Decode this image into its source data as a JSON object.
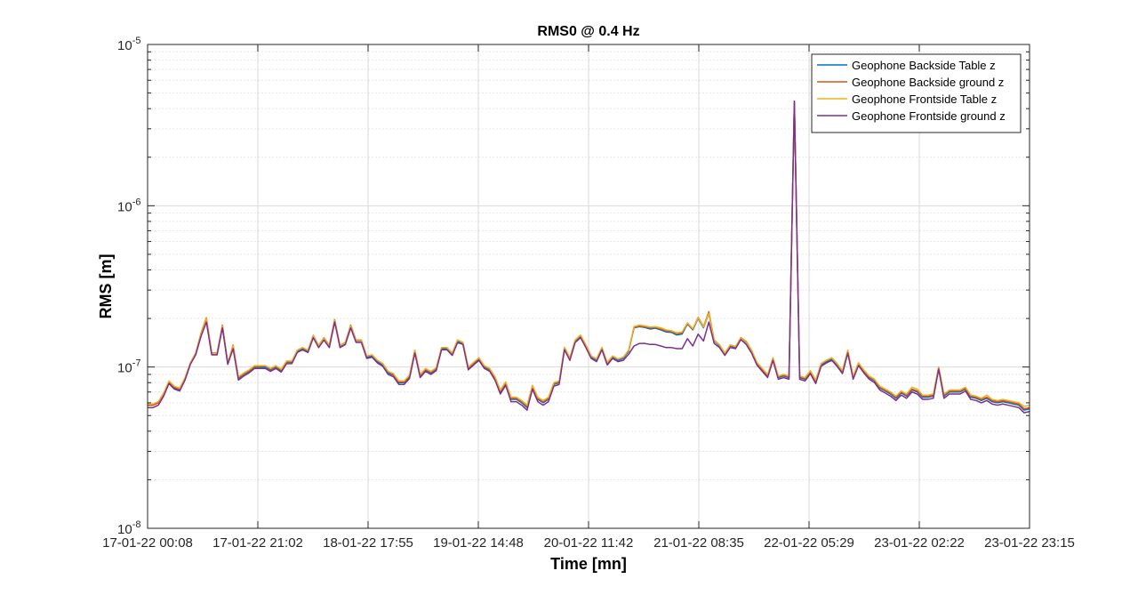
{
  "chart_data": {
    "type": "line",
    "title": "RMS0 @ 0.4 Hz",
    "xlabel": "Time [mn]",
    "ylabel": "RMS [m]",
    "yscale": "log",
    "ylim": [
      1e-08,
      1e-05
    ],
    "ytick_labels": [
      {
        "value": 1e-08,
        "base": "10",
        "exp": "-8"
      },
      {
        "value": 1e-07,
        "base": "10",
        "exp": "-7"
      },
      {
        "value": 1e-06,
        "base": "10",
        "exp": "-6"
      },
      {
        "value": 1e-05,
        "base": "10",
        "exp": "-5"
      }
    ],
    "xticks": [
      "17-01-22 00:08",
      "17-01-22 21:02",
      "18-01-22 17:55",
      "19-01-22 14:48",
      "20-01-22 11:42",
      "21-01-22 08:35",
      "22-01-22 05:29",
      "23-01-22 02:22",
      "23-01-22 23:15"
    ],
    "grid": true,
    "minor_grid": true,
    "legend_position": "top-right",
    "colors": [
      "#0072BD",
      "#D95319",
      "#EDB120",
      "#7E2F8E"
    ],
    "series": [
      {
        "name": "Geophone Backside Table z",
        "color": "#0072BD",
        "values": [
          5.8e-08,
          5.8e-08,
          6e-08,
          6.8e-08,
          8e-08,
          7.4e-08,
          7.2e-08,
          8.4e-08,
          1.05e-07,
          1.2e-07,
          1.6e-07,
          2e-07,
          1.2e-07,
          1.2e-07,
          1.8e-07,
          1.05e-07,
          1.35e-07,
          8.5e-08,
          9e-08,
          9.4e-08,
          1e-07,
          1e-07,
          1e-07,
          9.6e-08,
          1e-07,
          9.5e-08,
          1.07e-07,
          1.07e-07,
          1.25e-07,
          1.3e-07,
          1.25e-07,
          1.55e-07,
          1.35e-07,
          1.5e-07,
          1.35e-07,
          1.95e-07,
          1.35e-07,
          1.4e-07,
          1.8e-07,
          1.45e-07,
          1.45e-07,
          1.15e-07,
          1.17e-07,
          1.08e-07,
          1.03e-07,
          9.2e-08,
          8.9e-08,
          8e-08,
          8e-08,
          8.7e-08,
          1.25e-07,
          8.8e-08,
          9.6e-08,
          9.2e-08,
          9.7e-08,
          1.3e-07,
          1.3e-07,
          1.2e-07,
          1.45e-07,
          1.4e-07,
          9.8e-08,
          1.05e-07,
          1.12e-07,
          1e-07,
          9.6e-08,
          8.5e-08,
          7e-08,
          7.9e-08,
          6.3e-08,
          6.3e-08,
          6e-08,
          5.6e-08,
          7.5e-08,
          6.3e-08,
          6e-08,
          6.3e-08,
          7.8e-08,
          8e-08,
          1.3e-07,
          1.12e-07,
          1.45e-07,
          1.55e-07,
          1.35e-07,
          1.15e-07,
          1.1e-07,
          1.3e-07,
          1.05e-07,
          1.15e-07,
          1.1e-07,
          1.13e-07,
          1.25e-07,
          1.75e-07,
          1.78e-07,
          1.76e-07,
          1.72e-07,
          1.74e-07,
          1.7e-07,
          1.65e-07,
          1.64e-07,
          1.58e-07,
          1.6e-07,
          1.85e-07,
          1.7e-07,
          2e-07,
          1.75e-07,
          2.15e-07,
          1.45e-07,
          1.35e-07,
          1.2e-07,
          1.35e-07,
          1.32e-07,
          1.5e-07,
          1.42e-07,
          1.25e-07,
          1.05e-07,
          9.6e-08,
          8.8e-08,
          1.12e-07,
          8.6e-08,
          8.8e-08,
          8.6e-08,
          4.4e-06,
          8.6e-08,
          8.4e-08,
          9.3e-08,
          8.1e-08,
          1.03e-07,
          1.08e-07,
          1.12e-07,
          1.03e-07,
          9.3e-08,
          1.25e-07,
          8.6e-08,
          1.04e-07,
          9.4e-08,
          8.6e-08,
          8.2e-08,
          7.4e-08,
          7.1e-08,
          6.8e-08,
          6.4e-08,
          6.9e-08,
          6.6e-08,
          7.2e-08,
          7e-08,
          6.5e-08,
          6.5e-08,
          6.6e-08,
          9.9e-08,
          6.6e-08,
          7e-08,
          7e-08,
          7e-08,
          7.3e-08,
          6.5e-08,
          6.4e-08,
          6.2e-08,
          6.4e-08,
          6.1e-08,
          6e-08,
          6.1e-08,
          6e-08,
          5.9e-08,
          5.8e-08,
          5.4e-08,
          5.5e-08
        ]
      },
      {
        "name": "Geophone Backside ground z",
        "color": "#D95319",
        "values": [
          5.8e-08,
          5.8e-08,
          6e-08,
          6.8e-08,
          8.1e-08,
          7.5e-08,
          7.3e-08,
          8.5e-08,
          1.06e-07,
          1.22e-07,
          1.62e-07,
          2.02e-07,
          1.22e-07,
          1.22e-07,
          1.82e-07,
          1.06e-07,
          1.37e-07,
          8.6e-08,
          9.1e-08,
          9.5e-08,
          1.01e-07,
          1.01e-07,
          1.02e-07,
          9.7e-08,
          1.01e-07,
          9.6e-08,
          1.08e-07,
          1.08e-07,
          1.27e-07,
          1.32e-07,
          1.27e-07,
          1.57e-07,
          1.36e-07,
          1.52e-07,
          1.36e-07,
          1.97e-07,
          1.36e-07,
          1.42e-07,
          1.82e-07,
          1.47e-07,
          1.47e-07,
          1.17e-07,
          1.19e-07,
          1.1e-07,
          1.05e-07,
          9.4e-08,
          9e-08,
          8.1e-08,
          8.1e-08,
          8.8e-08,
          1.27e-07,
          8.9e-08,
          9.7e-08,
          9.3e-08,
          9.8e-08,
          1.32e-07,
          1.32e-07,
          1.22e-07,
          1.47e-07,
          1.42e-07,
          9.9e-08,
          1.06e-07,
          1.14e-07,
          1.01e-07,
          9.7e-08,
          8.6e-08,
          7.1e-08,
          8e-08,
          6.4e-08,
          6.4e-08,
          6.1e-08,
          5.7e-08,
          7.6e-08,
          6.4e-08,
          6.1e-08,
          6.4e-08,
          7.9e-08,
          8.1e-08,
          1.32e-07,
          1.14e-07,
          1.47e-07,
          1.57e-07,
          1.37e-07,
          1.17e-07,
          1.12e-07,
          1.32e-07,
          1.06e-07,
          1.17e-07,
          1.12e-07,
          1.15e-07,
          1.27e-07,
          1.76e-07,
          1.8e-07,
          1.78e-07,
          1.75e-07,
          1.76e-07,
          1.72e-07,
          1.68e-07,
          1.66e-07,
          1.61e-07,
          1.63e-07,
          1.87e-07,
          1.72e-07,
          2.03e-07,
          1.78e-07,
          2.2e-07,
          1.47e-07,
          1.37e-07,
          1.22e-07,
          1.37e-07,
          1.34e-07,
          1.52e-07,
          1.44e-07,
          1.27e-07,
          1.06e-07,
          9.7e-08,
          8.9e-08,
          1.14e-07,
          8.7e-08,
          8.9e-08,
          8.7e-08,
          4.45e-06,
          8.7e-08,
          8.5e-08,
          9.4e-08,
          8.2e-08,
          1.05e-07,
          1.1e-07,
          1.14e-07,
          1.05e-07,
          9.4e-08,
          1.27e-07,
          8.7e-08,
          1.06e-07,
          9.5e-08,
          8.7e-08,
          8.3e-08,
          7.5e-08,
          7.2e-08,
          6.9e-08,
          6.5e-08,
          7e-08,
          6.7e-08,
          7.3e-08,
          7.1e-08,
          6.6e-08,
          6.6e-08,
          6.7e-08,
          1e-07,
          6.7e-08,
          7.1e-08,
          7.1e-08,
          7.1e-08,
          7.4e-08,
          6.6e-08,
          6.5e-08,
          6.3e-08,
          6.5e-08,
          6.2e-08,
          6.1e-08,
          6.2e-08,
          6.1e-08,
          6e-08,
          5.9e-08,
          5.5e-08,
          5.6e-08
        ]
      },
      {
        "name": "Geophone Frontside Table z",
        "color": "#EDB120",
        "values": [
          5.9e-08,
          5.9e-08,
          6.1e-08,
          6.9e-08,
          8.2e-08,
          7.6e-08,
          7.4e-08,
          8.6e-08,
          1.06e-07,
          1.21e-07,
          1.6e-07,
          2e-07,
          1.21e-07,
          1.21e-07,
          1.8e-07,
          1.06e-07,
          1.36e-07,
          8.7e-08,
          9.2e-08,
          9.6e-08,
          1.02e-07,
          1.02e-07,
          1.02e-07,
          9.8e-08,
          1.02e-07,
          9.7e-08,
          1.09e-07,
          1.09e-07,
          1.27e-07,
          1.32e-07,
          1.27e-07,
          1.56e-07,
          1.36e-07,
          1.51e-07,
          1.36e-07,
          1.95e-07,
          1.36e-07,
          1.41e-07,
          1.8e-07,
          1.46e-07,
          1.46e-07,
          1.17e-07,
          1.19e-07,
          1.1e-07,
          1.05e-07,
          9.4e-08,
          9.1e-08,
          8.2e-08,
          8.2e-08,
          8.9e-08,
          1.27e-07,
          9e-08,
          9.8e-08,
          9.4e-08,
          9.9e-08,
          1.32e-07,
          1.32e-07,
          1.22e-07,
          1.47e-07,
          1.42e-07,
          1e-07,
          1.07e-07,
          1.14e-07,
          1.02e-07,
          9.8e-08,
          8.7e-08,
          7.2e-08,
          8.1e-08,
          6.5e-08,
          6.5e-08,
          6.2e-08,
          5.8e-08,
          7.7e-08,
          6.5e-08,
          6.2e-08,
          6.5e-08,
          8e-08,
          8.2e-08,
          1.32e-07,
          1.14e-07,
          1.47e-07,
          1.58e-07,
          1.37e-07,
          1.17e-07,
          1.12e-07,
          1.32e-07,
          1.07e-07,
          1.17e-07,
          1.12e-07,
          1.15e-07,
          1.27e-07,
          1.78e-07,
          1.82e-07,
          1.8e-07,
          1.77e-07,
          1.78e-07,
          1.75e-07,
          1.7e-07,
          1.68e-07,
          1.63e-07,
          1.65e-07,
          1.88e-07,
          1.73e-07,
          2.02e-07,
          1.77e-07,
          2.15e-07,
          1.46e-07,
          1.37e-07,
          1.22e-07,
          1.37e-07,
          1.34e-07,
          1.51e-07,
          1.43e-07,
          1.27e-07,
          1.07e-07,
          9.8e-08,
          9e-08,
          1.14e-07,
          8.8e-08,
          9e-08,
          8.8e-08,
          4.4e-06,
          8.8e-08,
          8.6e-08,
          9.5e-08,
          8.3e-08,
          1.05e-07,
          1.1e-07,
          1.14e-07,
          1.05e-07,
          9.5e-08,
          1.27e-07,
          8.8e-08,
          1.06e-07,
          9.6e-08,
          8.8e-08,
          8.4e-08,
          7.6e-08,
          7.3e-08,
          7e-08,
          6.6e-08,
          7.1e-08,
          6.8e-08,
          7.5e-08,
          7.3e-08,
          6.7e-08,
          6.7e-08,
          6.8e-08,
          1e-07,
          6.8e-08,
          7.2e-08,
          7.2e-08,
          7.2e-08,
          7.5e-08,
          6.7e-08,
          6.6e-08,
          6.4e-08,
          6.7e-08,
          6.3e-08,
          6.2e-08,
          6.3e-08,
          6.2e-08,
          6.1e-08,
          6e-08,
          5.7e-08,
          5.8e-08
        ]
      },
      {
        "name": "Geophone Frontside ground z",
        "color": "#7E2F8E",
        "values": [
          5.6e-08,
          5.6e-08,
          5.8e-08,
          6.6e-08,
          7.9e-08,
          7.3e-08,
          7.1e-08,
          8.3e-08,
          1.04e-07,
          1.19e-07,
          1.55e-07,
          1.9e-07,
          1.19e-07,
          1.19e-07,
          1.75e-07,
          1.04e-07,
          1.3e-07,
          8.3e-08,
          8.8e-08,
          9.2e-08,
          9.8e-08,
          9.8e-08,
          9.8e-08,
          9.4e-08,
          9.8e-08,
          9.3e-08,
          1.05e-07,
          1.05e-07,
          1.23e-07,
          1.28e-07,
          1.23e-07,
          1.52e-07,
          1.32e-07,
          1.47e-07,
          1.32e-07,
          1.9e-07,
          1.32e-07,
          1.38e-07,
          1.75e-07,
          1.42e-07,
          1.42e-07,
          1.13e-07,
          1.15e-07,
          1.06e-07,
          1.01e-07,
          9e-08,
          8.7e-08,
          7.8e-08,
          7.8e-08,
          8.5e-08,
          1.22e-07,
          8.6e-08,
          9.4e-08,
          9e-08,
          9.5e-08,
          1.28e-07,
          1.28e-07,
          1.18e-07,
          1.42e-07,
          1.38e-07,
          9.6e-08,
          1.03e-07,
          1.1e-07,
          9.8e-08,
          9.4e-08,
          8.3e-08,
          6.8e-08,
          7.7e-08,
          6.1e-08,
          6.1e-08,
          5.8e-08,
          5.4e-08,
          7.3e-08,
          6.1e-08,
          5.8e-08,
          6.1e-08,
          7.6e-08,
          7.8e-08,
          1.28e-07,
          1.1e-07,
          1.42e-07,
          1.52e-07,
          1.32e-07,
          1.13e-07,
          1.08e-07,
          1.28e-07,
          1.03e-07,
          1.13e-07,
          1.08e-07,
          1.1e-07,
          1.2e-07,
          1.35e-07,
          1.4e-07,
          1.4e-07,
          1.38e-07,
          1.38e-07,
          1.35e-07,
          1.32e-07,
          1.32e-07,
          1.3e-07,
          1.3e-07,
          1.5e-07,
          1.35e-07,
          1.6e-07,
          1.45e-07,
          1.9e-07,
          1.4e-07,
          1.32e-07,
          1.18e-07,
          1.32e-07,
          1.3e-07,
          1.48e-07,
          1.38e-07,
          1.22e-07,
          1.03e-07,
          9.4e-08,
          8.6e-08,
          1.1e-07,
          8.4e-08,
          8.6e-08,
          8.4e-08,
          4.45e-06,
          8.4e-08,
          8.2e-08,
          9.1e-08,
          7.9e-08,
          1.01e-07,
          1.06e-07,
          1.1e-07,
          1.01e-07,
          9.1e-08,
          1.22e-07,
          8.4e-08,
          1.02e-07,
          9.2e-08,
          8.4e-08,
          8e-08,
          7.2e-08,
          6.9e-08,
          6.6e-08,
          6.2e-08,
          6.7e-08,
          6.4e-08,
          7e-08,
          6.8e-08,
          6.3e-08,
          6.3e-08,
          6.4e-08,
          9.7e-08,
          6.4e-08,
          6.8e-08,
          6.8e-08,
          6.8e-08,
          7.1e-08,
          6.3e-08,
          6.2e-08,
          6e-08,
          6.2e-08,
          5.9e-08,
          5.8e-08,
          5.9e-08,
          5.8e-08,
          5.7e-08,
          5.6e-08,
          5.2e-08,
          5.3e-08
        ]
      }
    ]
  }
}
